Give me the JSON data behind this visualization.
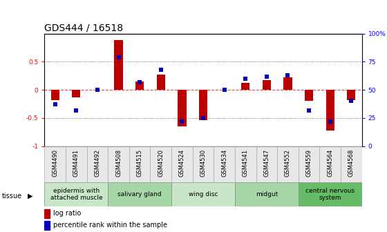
{
  "title": "GDS444 / 16518",
  "samples": [
    "GSM4490",
    "GSM4491",
    "GSM4492",
    "GSM4508",
    "GSM4515",
    "GSM4520",
    "GSM4524",
    "GSM4530",
    "GSM4534",
    "GSM4541",
    "GSM4547",
    "GSM4552",
    "GSM4559",
    "GSM4564",
    "GSM4568"
  ],
  "log_ratio": [
    -0.18,
    -0.13,
    0.0,
    0.88,
    0.15,
    0.27,
    -0.65,
    -0.54,
    0.0,
    0.13,
    0.17,
    0.22,
    -0.2,
    -0.72,
    -0.18
  ],
  "percentile": [
    37,
    32,
    50,
    79,
    57,
    68,
    22,
    25,
    50,
    60,
    62,
    63,
    32,
    22,
    40
  ],
  "tissue_groups": [
    {
      "label": "epidermis with\nattached muscle",
      "start": 0,
      "end": 3,
      "color": "#c8e6c8"
    },
    {
      "label": "salivary gland",
      "start": 3,
      "end": 6,
      "color": "#a5d6a5"
    },
    {
      "label": "wing disc",
      "start": 6,
      "end": 9,
      "color": "#c8e6c8"
    },
    {
      "label": "midgut",
      "start": 9,
      "end": 12,
      "color": "#a5d6a5"
    },
    {
      "label": "central nervous\nsystem",
      "start": 12,
      "end": 15,
      "color": "#66bb66"
    }
  ],
  "ylim_left": [
    -1,
    1
  ],
  "ylim_right": [
    0,
    100
  ],
  "yticks_left": [
    -1,
    -0.5,
    0,
    0.5
  ],
  "ytick_labels_left": [
    "-1",
    "-0.5",
    "0",
    "0.5"
  ],
  "yticks_right_vals": [
    0,
    25,
    50,
    75,
    100
  ],
  "ytick_labels_right": [
    "0",
    "25",
    "50",
    "75",
    "100%"
  ],
  "bar_color_red": "#bb0000",
  "dot_color_blue": "#0000bb",
  "hline_color": "#ee4444",
  "dot_color_str": "#333333",
  "bar_width": 0.4,
  "dot_size": 22,
  "title_fontsize": 10,
  "tick_fontsize": 6.5,
  "sample_tick_fontsize": 6,
  "label_fontsize": 7,
  "tissue_label_fontsize": 6.5,
  "n_samples": 15
}
